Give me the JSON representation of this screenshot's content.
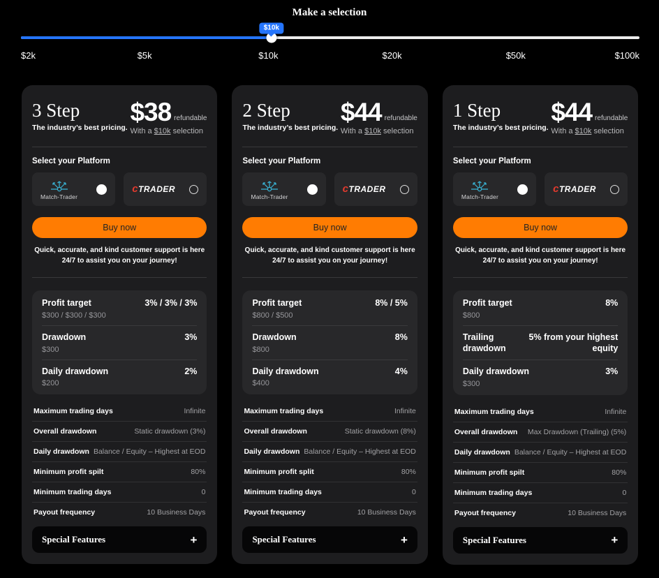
{
  "slider": {
    "title": "Make a selection",
    "tooltip": "$10k",
    "fill_percent": 40.5,
    "labels": [
      "$2k",
      "$5k",
      "$10k",
      "$20k",
      "$50k",
      "$100k"
    ],
    "colors": {
      "accent_blue": "#2575fc",
      "track": "#ececec"
    }
  },
  "platform": {
    "label": "Select your Platform",
    "options": [
      {
        "name": "Match-Trader",
        "selected": true,
        "accent": "#3ab5d6"
      },
      {
        "name": "cTrader",
        "selected": false,
        "logo_c": "c",
        "logo_rest": "Trader",
        "accent": "#e23a2e"
      }
    ]
  },
  "theme": {
    "page_bg": "#000000",
    "card_bg": "#1d1d1f",
    "buy_orange": "#ff7c02"
  },
  "cards": [
    {
      "title": "3 Step",
      "tagline": "The industry’s best pricing.",
      "price": "$38",
      "price_suffix": "refundable",
      "note_prefix": "With a ",
      "note_link": "$10k",
      "note_suffix": " selection",
      "buy_label": "Buy now",
      "support_text": "Quick, accurate, and kind customer support is here 24/7 to assist you on your journey!",
      "stats": [
        {
          "label": "Profit target",
          "value": "3% / 3% / 3%",
          "sub": "$300 / $300 / $300"
        },
        {
          "label": "Drawdown",
          "value": "3%",
          "sub": "$300"
        },
        {
          "label": "Daily drawdown",
          "value": "2%",
          "sub": "$200"
        }
      ],
      "details": [
        {
          "label": "Maximum trading days",
          "value": "Infinite"
        },
        {
          "label": "Overall drawdown",
          "value": "Static drawdown (3%)"
        },
        {
          "label": "Daily drawdown",
          "value": "Balance / Equity – Highest at EOD"
        },
        {
          "label": "Minimum profit spilt",
          "value": "80%"
        },
        {
          "label": "Minimum trading days",
          "value": "0"
        },
        {
          "label": "Payout frequency",
          "value": "10 Business Days"
        }
      ],
      "special_label": "Special Features",
      "special_icon": "+"
    },
    {
      "title": "2 Step",
      "tagline": "The industry’s best pricing.",
      "price": "$44",
      "price_suffix": "refundable",
      "note_prefix": "With a ",
      "note_link": "$10k",
      "note_suffix": " selection",
      "buy_label": "Buy now",
      "support_text": "Quick, accurate, and kind customer support is here 24/7 to assist you on your journey!",
      "stats": [
        {
          "label": "Profit target",
          "value": "8% / 5%",
          "sub": "$800 / $500"
        },
        {
          "label": "Drawdown",
          "value": "8%",
          "sub": "$800"
        },
        {
          "label": "Daily drawdown",
          "value": "4%",
          "sub": "$400"
        }
      ],
      "details": [
        {
          "label": "Maximum trading days",
          "value": "Infinite"
        },
        {
          "label": "Overall drawdown",
          "value": "Static drawdown (8%)"
        },
        {
          "label": "Daily drawdown",
          "value": "Balance / Equity – Highest at EOD"
        },
        {
          "label": "Minimum profit split",
          "value": "80%"
        },
        {
          "label": "Minimum trading days",
          "value": "0"
        },
        {
          "label": "Payout frequency",
          "value": "10 Business Days"
        }
      ],
      "special_label": "Special Features",
      "special_icon": "+"
    },
    {
      "title": "1 Step",
      "tagline": "The industry’s best pricing.",
      "price": "$44",
      "price_suffix": "refundable",
      "note_prefix": "With a ",
      "note_link": "$10k",
      "note_suffix": " selection",
      "buy_label": "Buy now",
      "support_text": "Quick, accurate, and kind customer support is here 24/7 to assist you on your journey!",
      "stats": [
        {
          "label": "Profit target",
          "value": "8%",
          "sub": "$800"
        },
        {
          "label": "Trailing drawdown",
          "value": "5% from your highest equity",
          "sub": ""
        },
        {
          "label": "Daily drawdown",
          "value": "3%",
          "sub": "$300"
        }
      ],
      "details": [
        {
          "label": "Maximum trading days",
          "value": "Infinite"
        },
        {
          "label": "Overall drawdown",
          "value": "Max Drawdown (Trailing) (5%)"
        },
        {
          "label": "Daily drawdown",
          "value": "Balance / Equity – Highest at EOD"
        },
        {
          "label": "Minimum profit spilt",
          "value": "80%"
        },
        {
          "label": "Minimum trading days",
          "value": "0"
        },
        {
          "label": "Payout frequency",
          "value": "10 Business Days"
        }
      ],
      "special_label": "Special Features",
      "special_icon": "+"
    }
  ]
}
